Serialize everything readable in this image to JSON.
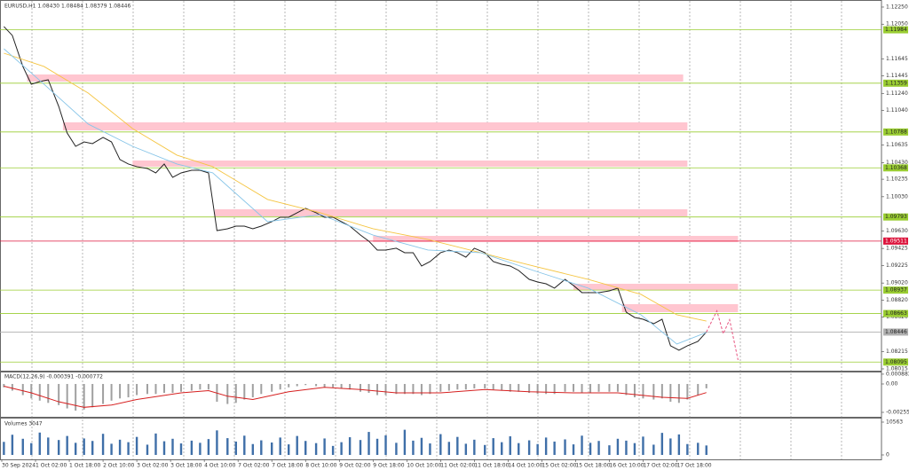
{
  "chart_data": [
    {
      "type": "line",
      "title": "EURUSD,H1 1.08430 1.08484 1.08379 1.08446",
      "xlim": [
        0,
        417
      ],
      "xticks": [
        {
          "value": 0,
          "label": "30 Sep 2024"
        },
        {
          "value": 16,
          "label": "1 Oct 02:00"
        },
        {
          "value": 32,
          "label": "1 Oct 18:00"
        },
        {
          "value": 48,
          "label": "2 Oct 10:00"
        },
        {
          "value": 64,
          "label": "3 Oct 02:00"
        },
        {
          "value": 80,
          "label": "3 Oct 18:00"
        },
        {
          "value": 96,
          "label": "4 Oct 10:00"
        },
        {
          "value": 112,
          "label": "7 Oct 02:00"
        },
        {
          "value": 128,
          "label": "7 Oct 18:00"
        },
        {
          "value": 144,
          "label": "8 Oct 10:00"
        },
        {
          "value": 160,
          "label": "9 Oct 02:00"
        },
        {
          "value": 176,
          "label": "9 Oct 18:00"
        },
        {
          "value": 192,
          "label": "10 Oct 10:00"
        },
        {
          "value": 208,
          "label": "11 Oct 02:00"
        },
        {
          "value": 224,
          "label": "11 Oct 18:00"
        },
        {
          "value": 240,
          "label": "14 Oct 10:00"
        },
        {
          "value": 256,
          "label": "15 Oct 02:00"
        },
        {
          "value": 272,
          "label": "15 Oct 18:00"
        },
        {
          "value": 288,
          "label": "16 Oct 10:00"
        },
        {
          "value": 304,
          "label": "17 Oct 02:00"
        },
        {
          "value": 320,
          "label": "17 Oct 18:00"
        }
      ],
      "ylim": [
        1.07994,
        1.12312
      ],
      "yticks": [
        {
          "value": 1.1225,
          "label": "1.12250"
        },
        {
          "value": 1.1205,
          "label": "1.12050"
        },
        1.11645,
        1.11445,
        {
          "value": 1.1124,
          "label": "1.11240"
        },
        {
          "value": 1.1104,
          "label": "1.11040"
        },
        1.10635,
        {
          "value": 1.1043,
          "label": "1.10430"
        },
        1.10235,
        {
          "value": 1.1003,
          "label": "1.10030"
        },
        {
          "value": 1.0963,
          "label": "1.09630"
        },
        1.09425,
        1.09225,
        {
          "value": 1.0902,
          "label": "1.09020"
        },
        {
          "value": 1.0882,
          "label": "1.08820"
        },
        {
          "value": 1.0862,
          "label": "1.08620"
        },
        1.08215,
        1.08015
      ],
      "zone_color": "#ffc6d0",
      "zones": [
        {
          "ylo": 1.11378,
          "yhi": 1.11461,
          "xstart": 12,
          "xend": 323
        },
        {
          "ylo": 1.10807,
          "yhi": 1.10901,
          "xstart": 29,
          "xend": 325
        },
        {
          "ylo": 1.10382,
          "yhi": 1.10454,
          "xstart": 62,
          "xend": 325
        },
        {
          "ylo": 1.098,
          "yhi": 1.09883,
          "xstart": 101,
          "xend": 325
        },
        {
          "ylo": 1.09499,
          "yhi": 1.09572,
          "xstart": 176,
          "xend": 349
        },
        {
          "ylo": 1.08939,
          "yhi": 1.09011,
          "xstart": 271,
          "xend": 349
        },
        {
          "ylo": 1.08679,
          "yhi": 1.08773,
          "xstart": 294,
          "xend": 349
        }
      ],
      "levels": [
        {
          "value": 1.11984,
          "color": "#9acd32"
        },
        {
          "value": 1.11359,
          "color": "#9acd32"
        },
        {
          "value": 1.10788,
          "color": "#9acd32"
        },
        {
          "value": 1.10368,
          "color": "#9acd32"
        },
        {
          "value": 1.09793,
          "color": "#9acd32"
        },
        {
          "value": 1.09511,
          "color": "#dc143c"
        },
        {
          "value": 1.08937,
          "color": "#9acd32"
        },
        {
          "value": 1.08663,
          "color": "#9acd32"
        },
        {
          "value": 1.08446,
          "color": "#b0b0b0"
        },
        {
          "value": 1.08095,
          "color": "#9acd32"
        }
      ],
      "series": [
        {
          "color": "#222222",
          "x": [
            1,
            5,
            10,
            14,
            18,
            22,
            27,
            31,
            35,
            39,
            43,
            48,
            52,
            56,
            60,
            64,
            69,
            73,
            77,
            81,
            85,
            90,
            94,
            98,
            102,
            107,
            111,
            115,
            119,
            123,
            128,
            132,
            136,
            140,
            144,
            149,
            153,
            157,
            161,
            165,
            170,
            174,
            178,
            182,
            187,
            191,
            195,
            199,
            203,
            208,
            212,
            216,
            220,
            224,
            229,
            233,
            237,
            241,
            245,
            250,
            254,
            258,
            262,
            267,
            271,
            275,
            279,
            283,
            288,
            292,
            296,
            300,
            304,
            309,
            313,
            317,
            321,
            325,
            330,
            334
          ],
          "values": [
            1.12022,
            1.11918,
            1.11555,
            1.11347,
            1.11378,
            1.11399,
            1.11087,
            1.10776,
            1.1062,
            1.10672,
            1.10652,
            1.10724,
            1.10672,
            1.10465,
            1.10413,
            1.10382,
            1.10361,
            1.10309,
            1.10413,
            1.10257,
            1.10309,
            1.1034,
            1.1034,
            1.10309,
            1.09634,
            1.09655,
            1.09686,
            1.09686,
            1.09655,
            1.09686,
            1.09738,
            1.0979,
            1.0979,
            1.09842,
            1.09894,
            1.09842,
            1.0979,
            1.0979,
            1.09738,
            1.09686,
            1.09582,
            1.0951,
            1.09406,
            1.09406,
            1.09427,
            1.09375,
            1.09375,
            1.09219,
            1.09271,
            1.09375,
            1.09406,
            1.09375,
            1.09323,
            1.09427,
            1.09375,
            1.09271,
            1.0924,
            1.09219,
            1.09167,
            1.09063,
            1.09032,
            1.09011,
            1.0896,
            1.09063,
            1.08991,
            1.08908,
            1.08908,
            1.08908,
            1.08928,
            1.0896,
            1.08679,
            1.08617,
            1.08596,
            1.08544,
            1.08596,
            1.08285,
            1.08233,
            1.08285,
            1.08337,
            1.08446
          ]
        },
        {
          "color": "#f5c542",
          "x": [
            1,
            20,
            41,
            62,
            83,
            100,
            126,
            151,
            176,
            202,
            227,
            252,
            278,
            303,
            320,
            334
          ],
          "values": [
            1.1171,
            1.11555,
            1.11243,
            1.10828,
            1.10517,
            1.10382,
            1.09998,
            1.09842,
            1.09655,
            1.0953,
            1.09375,
            1.09219,
            1.09063,
            1.08887,
            1.08648,
            1.08575
          ]
        },
        {
          "color": "#87c5e8",
          "x": [
            1,
            20,
            41,
            62,
            83,
            100,
            126,
            151,
            176,
            202,
            227,
            252,
            278,
            303,
            320,
            334
          ],
          "values": [
            1.11762,
            1.11347,
            1.1088,
            1.1062,
            1.10413,
            1.10309,
            1.09738,
            1.09821,
            1.09582,
            1.09406,
            1.09375,
            1.09167,
            1.0896,
            1.08648,
            1.08306,
            1.08441
          ]
        }
      ],
      "forecast": {
        "color": "#e75480",
        "x": [
          334,
          339,
          342,
          345,
          349
        ],
        "values": [
          1.08446,
          1.08695,
          1.08426,
          1.08591,
          1.08119
        ]
      }
    },
    {
      "type": "macd",
      "title": "MACD(12,26,9) -0.000391 -0.000772",
      "ylim": [
        -0.003033,
        0.001037
      ],
      "yticks": [
        0.000883,
        {
          "value": 0,
          "label": "0.00"
        },
        -0.002554
      ],
      "histogram": {
        "color": "#a0a0a0",
        "x": [
          1,
          5,
          10,
          14,
          18,
          22,
          27,
          31,
          35,
          39,
          43,
          48,
          52,
          56,
          60,
          64,
          69,
          73,
          77,
          81,
          85,
          90,
          94,
          98,
          102,
          107,
          111,
          115,
          119,
          123,
          128,
          132,
          136,
          140,
          144,
          149,
          153,
          157,
          161,
          165,
          170,
          174,
          178,
          182,
          187,
          191,
          195,
          199,
          203,
          208,
          212,
          216,
          220,
          224,
          229,
          233,
          237,
          241,
          245,
          250,
          254,
          258,
          262,
          267,
          271,
          275,
          279,
          283,
          288,
          292,
          296,
          300,
          304,
          309,
          313,
          317,
          321,
          325,
          330,
          334
        ],
        "values": [
          -0.0003,
          -0.0006,
          -0.001,
          -0.0013,
          -0.0015,
          -0.0017,
          -0.0019,
          -0.0022,
          -0.0024,
          -0.0023,
          -0.0021,
          -0.0018,
          -0.0015,
          -0.0013,
          -0.0012,
          -0.001,
          -0.0009,
          -0.0009,
          -0.0008,
          -0.0008,
          -0.0007,
          -0.0006,
          -0.0005,
          -0.0005,
          -0.0016,
          -0.0018,
          -0.0017,
          -0.0014,
          -0.0012,
          -0.0009,
          -0.0007,
          -0.0005,
          -0.0003,
          -0.0002,
          -0.0001,
          -0.0002,
          -0.0003,
          -0.0003,
          -0.0004,
          -0.0005,
          -0.0007,
          -0.0008,
          -0.001,
          -0.001,
          -0.0009,
          -0.0009,
          -0.0009,
          -0.001,
          -0.0009,
          -0.0007,
          -0.0006,
          -0.0005,
          -0.0005,
          -0.0004,
          -0.0004,
          -0.0005,
          -0.0006,
          -0.0007,
          -0.0007,
          -0.0008,
          -0.0009,
          -0.0009,
          -0.0009,
          -0.0007,
          -0.0007,
          -0.0008,
          -0.0008,
          -0.0007,
          -0.0007,
          -0.0007,
          -0.001,
          -0.0012,
          -0.0013,
          -0.0014,
          -0.0013,
          -0.0016,
          -0.0017,
          -0.0014,
          -0.001,
          -0.000391
        ]
      },
      "signal": {
        "color": "#d62020",
        "x": [
          1,
          14,
          27,
          39,
          52,
          64,
          85,
          98,
          107,
          119,
          136,
          153,
          170,
          187,
          208,
          229,
          250,
          271,
          292,
          313,
          325,
          334
        ],
        "values": [
          -0.0002,
          -0.0008,
          -0.0016,
          -0.0021,
          -0.0019,
          -0.0014,
          -0.0008,
          -0.0006,
          -0.0011,
          -0.0014,
          -0.0007,
          -0.0003,
          -0.0005,
          -0.0008,
          -0.0008,
          -0.0005,
          -0.0007,
          -0.0008,
          -0.0008,
          -0.0012,
          -0.0013,
          -0.000772
        ]
      }
    },
    {
      "type": "volume",
      "title": "Volumes 3047",
      "ylim": [
        0,
        11419
      ],
      "yticks": [
        10563,
        0
      ],
      "color": "#3f6fa8",
      "x": [
        1,
        5,
        10,
        14,
        18,
        22,
        27,
        31,
        35,
        39,
        43,
        48,
        52,
        56,
        60,
        64,
        69,
        73,
        77,
        81,
        85,
        90,
        94,
        98,
        102,
        107,
        111,
        115,
        119,
        123,
        128,
        132,
        136,
        140,
        144,
        149,
        153,
        157,
        161,
        165,
        170,
        174,
        178,
        182,
        187,
        191,
        195,
        199,
        203,
        208,
        212,
        216,
        220,
        224,
        229,
        233,
        237,
        241,
        245,
        250,
        254,
        258,
        262,
        267,
        271,
        275,
        279,
        283,
        288,
        292,
        296,
        300,
        304,
        309,
        313,
        317,
        321,
        325,
        330,
        334
      ],
      "values": [
        4200,
        6500,
        5200,
        3800,
        7200,
        5600,
        4800,
        6100,
        3900,
        5300,
        4500,
        6800,
        3600,
        4900,
        4100,
        5800,
        3300,
        6900,
        4400,
        5200,
        3700,
        4600,
        3900,
        5100,
        7900,
        5400,
        4300,
        6200,
        3500,
        4700,
        4000,
        5600,
        3400,
        6100,
        4500,
        3800,
        5300,
        2900,
        4100,
        5700,
        4800,
        7400,
        5200,
        6300,
        3900,
        8100,
        4600,
        5500,
        3700,
        6700,
        4200,
        5800,
        3600,
        4900,
        3200,
        5400,
        4100,
        6000,
        3800,
        4700,
        3500,
        5600,
        4300,
        5000,
        3400,
        6200,
        3900,
        4500,
        3100,
        5200,
        4600,
        3800,
        5900,
        3300,
        7100,
        5300,
        6600,
        3500,
        3900,
        3047
      ]
    }
  ]
}
